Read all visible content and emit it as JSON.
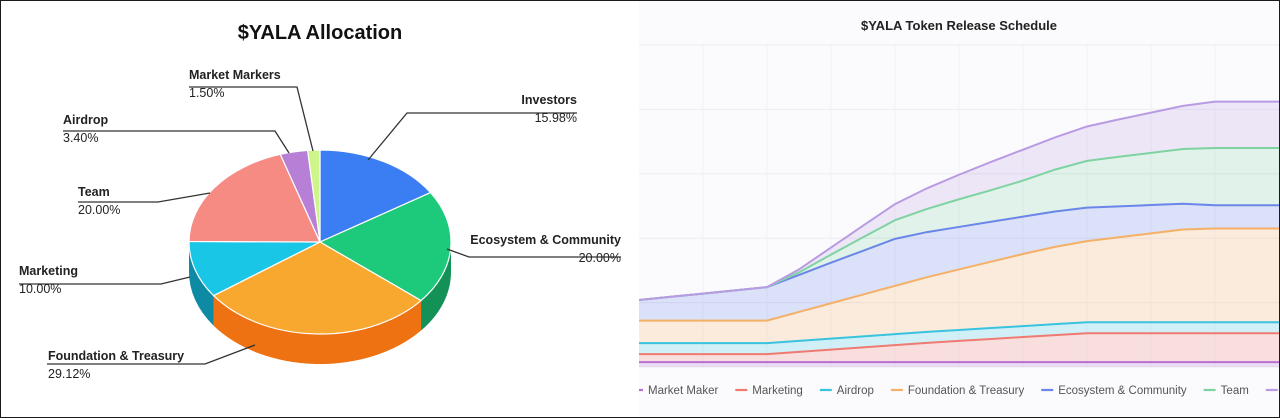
{
  "chart_data": [
    {
      "type": "pie",
      "title": "$YALA Allocation",
      "slices": [
        {
          "name": "Investors",
          "label": "15.98%",
          "value": 15.98,
          "color": "#3b7df2",
          "side": "#2a5bb8"
        },
        {
          "name": "Ecosystem & Community",
          "label": "20.00%",
          "value": 20.0,
          "color": "#1dc97a",
          "side": "#139157"
        },
        {
          "name": "Foundation & Treasury",
          "label": "29.12%",
          "value": 29.12,
          "color": "#f9a82f",
          "side": "#ee7112"
        },
        {
          "name": "Marketing",
          "label": "10.00%",
          "value": 10.0,
          "color": "#19c6e6",
          "side": "#0e8aa4"
        },
        {
          "name": "Team",
          "label": "20.00%",
          "value": 20.0,
          "color": "#f68b84",
          "side": "#c95d57"
        },
        {
          "name": "Airdrop",
          "label": "3.40%",
          "value": 3.4,
          "color": "#b77fd6",
          "side": "#8a55a8"
        },
        {
          "name": "Market Markers",
          "label": "1.50%",
          "value": 1.5,
          "color": "#cdf58a",
          "side": "#96bb55"
        }
      ]
    },
    {
      "type": "area",
      "title": "$YALA Token Release Schedule",
      "legend_position": "bottom",
      "x": [
        0,
        1,
        2,
        3,
        4,
        5,
        6,
        7,
        8,
        9,
        10,
        11,
        12,
        13,
        14,
        15,
        16,
        17,
        18,
        19,
        20
      ],
      "series": [
        {
          "name": "Market Maker",
          "color": "#b86fd6",
          "values": [
            1.5,
            1.5,
            1.5,
            1.5,
            1.5,
            1.5,
            1.5,
            1.5,
            1.5,
            1.5,
            1.5,
            1.5,
            1.5,
            1.5,
            1.5,
            1.5,
            1.5,
            1.5,
            1.5,
            1.5,
            1.5
          ]
        },
        {
          "name": "Marketing",
          "color": "#ef7a72",
          "values": [
            2.5,
            2.5,
            2.5,
            2.5,
            2.5,
            3.2,
            3.9,
            4.6,
            5.3,
            6.0,
            6.6,
            7.2,
            7.8,
            8.4,
            9.0,
            9.0,
            9.0,
            9.0,
            9.0,
            9.0,
            9.0
          ]
        },
        {
          "name": "Airdrop",
          "color": "#39c3de",
          "values": [
            3.4,
            3.4,
            3.4,
            3.4,
            3.4,
            3.4,
            3.4,
            3.4,
            3.4,
            3.4,
            3.4,
            3.4,
            3.4,
            3.4,
            3.4,
            3.4,
            3.4,
            3.4,
            3.4,
            3.4,
            3.4
          ]
        },
        {
          "name": "Foundation & Treasury",
          "color": "#f5b068",
          "values": [
            7.0,
            7.0,
            7.0,
            7.0,
            7.0,
            9.0,
            11.0,
            13.0,
            15.0,
            17.0,
            18.8,
            20.6,
            22.4,
            24.0,
            25.2,
            26.4,
            27.6,
            28.8,
            29.12,
            29.12,
            29.12
          ]
        },
        {
          "name": "Ecosystem & Community",
          "color": "#6a86e8",
          "values": [
            6.4,
            7.4,
            8.4,
            9.4,
            10.4,
            11.5,
            12.6,
            13.6,
            14.6,
            14.0,
            13.2,
            12.4,
            11.6,
            11.0,
            10.4,
            9.6,
            8.8,
            8.0,
            7.2,
            7.2,
            7.2
          ]
        },
        {
          "name": "Team",
          "color": "#7fd3a2",
          "values": [
            0,
            0,
            0,
            0,
            0,
            0.8,
            2.5,
            4.2,
            5.8,
            7.2,
            8.6,
            9.8,
            11.2,
            13.0,
            14.5,
            15.4,
            16.2,
            17.0,
            17.8,
            17.8,
            17.8
          ]
        },
        {
          "name": "Investors",
          "color": "#b99be3",
          "values": [
            0,
            0,
            0,
            0,
            0,
            0.9,
            2.2,
            3.6,
            5.0,
            6.4,
            7.6,
            8.8,
            9.6,
            10.0,
            10.7,
            11.6,
            12.5,
            13.4,
            14.4,
            14.4,
            14.4
          ]
        }
      ],
      "ylim": [
        0,
        100
      ]
    }
  ]
}
